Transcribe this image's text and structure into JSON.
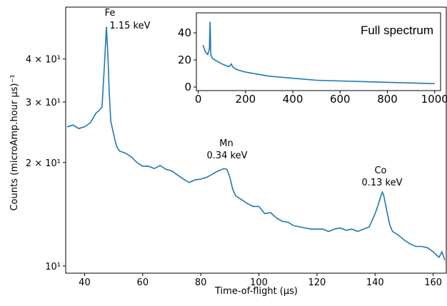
{
  "chart_data": [
    {
      "type": "line",
      "xlabel": "Time-of-flight (μs)",
      "ylabel": "Counts (microAmp.hour μs)⁻¹",
      "yscale": "log",
      "xlim": [
        33.5,
        164.5
      ],
      "ylim": [
        9.53,
        56.6
      ],
      "xticks": [
        40,
        60,
        80,
        100,
        120,
        140,
        160
      ],
      "yticks": [
        {
          "value": 10,
          "label": "10¹"
        },
        {
          "value": 20,
          "label": "2 × 10¹"
        },
        {
          "value": 30,
          "label": "3 × 10¹"
        },
        {
          "value": 40,
          "label": "4 × 10¹"
        }
      ],
      "annotations": [
        {
          "name": "Fe",
          "text": "1.15 keV"
        },
        {
          "name": "Mn",
          "text": "0.34 keV"
        },
        {
          "name": "Co",
          "text": "0.13 keV"
        }
      ],
      "x": [
        34,
        36,
        38,
        40,
        42,
        44,
        45,
        46,
        47,
        47.5,
        48,
        48.5,
        49,
        50,
        51,
        52,
        54,
        56,
        58,
        60,
        62,
        64,
        66,
        68,
        70,
        72,
        74,
        76,
        78,
        80,
        82,
        84,
        86,
        88,
        89,
        90,
        91,
        92,
        94,
        96,
        98,
        100,
        102,
        104,
        106,
        108,
        110,
        112,
        114,
        116,
        118,
        120,
        122,
        124,
        126,
        128,
        130,
        132,
        134,
        136,
        138,
        140,
        141,
        142,
        142.5,
        143,
        144,
        145,
        146,
        148,
        150,
        152,
        154,
        156,
        158,
        160,
        162,
        163,
        164
      ],
      "series": [
        {
          "color": "#1f77b4",
          "values": [
            25.4,
            25.7,
            25.1,
            25.4,
            26.1,
            27.9,
            28.3,
            29.0,
            40.6,
            49.6,
            41.6,
            31.9,
            26.4,
            24.2,
            22.3,
            21.6,
            21.3,
            20.8,
            20.0,
            19.5,
            19.5,
            19.2,
            19.6,
            19.1,
            18.9,
            18.4,
            17.9,
            17.5,
            17.8,
            17.9,
            18.1,
            18.5,
            18.9,
            19.2,
            19.1,
            18.1,
            16.7,
            16.0,
            15.6,
            15.2,
            14.9,
            14.9,
            14.2,
            14.3,
            13.8,
            13.5,
            13.4,
            13.1,
            13.0,
            12.9,
            12.8,
            12.8,
            12.8,
            12.6,
            12.8,
            12.9,
            12.7,
            12.8,
            12.6,
            12.8,
            13.0,
            14.2,
            15.0,
            16.0,
            16.4,
            16.0,
            14.5,
            13.2,
            12.6,
            12.3,
            11.9,
            11.6,
            11.4,
            11.4,
            11.3,
            11.0,
            10.6,
            11.0,
            10.4
          ]
        }
      ]
    },
    {
      "type": "line",
      "title": "Full spectrum",
      "xlim": [
        -8,
        1025
      ],
      "ylim": [
        -2.6,
        54.7
      ],
      "xticks": [
        0,
        200,
        400,
        600,
        800,
        1000
      ],
      "yticks": [
        0,
        20,
        40
      ],
      "x": [
        20,
        30,
        40,
        47,
        50,
        53,
        60,
        80,
        100,
        130,
        140,
        145,
        160,
        200,
        300,
        400,
        500,
        600,
        700,
        800,
        900,
        1000
      ],
      "series": [
        {
          "color": "#1f77b4",
          "values": [
            31,
            26,
            24,
            28,
            48,
            24,
            21,
            19,
            17,
            15,
            17,
            15,
            13,
            11,
            8,
            6.5,
            5,
            4.5,
            4,
            3.5,
            3,
            2.5
          ]
        }
      ]
    }
  ]
}
